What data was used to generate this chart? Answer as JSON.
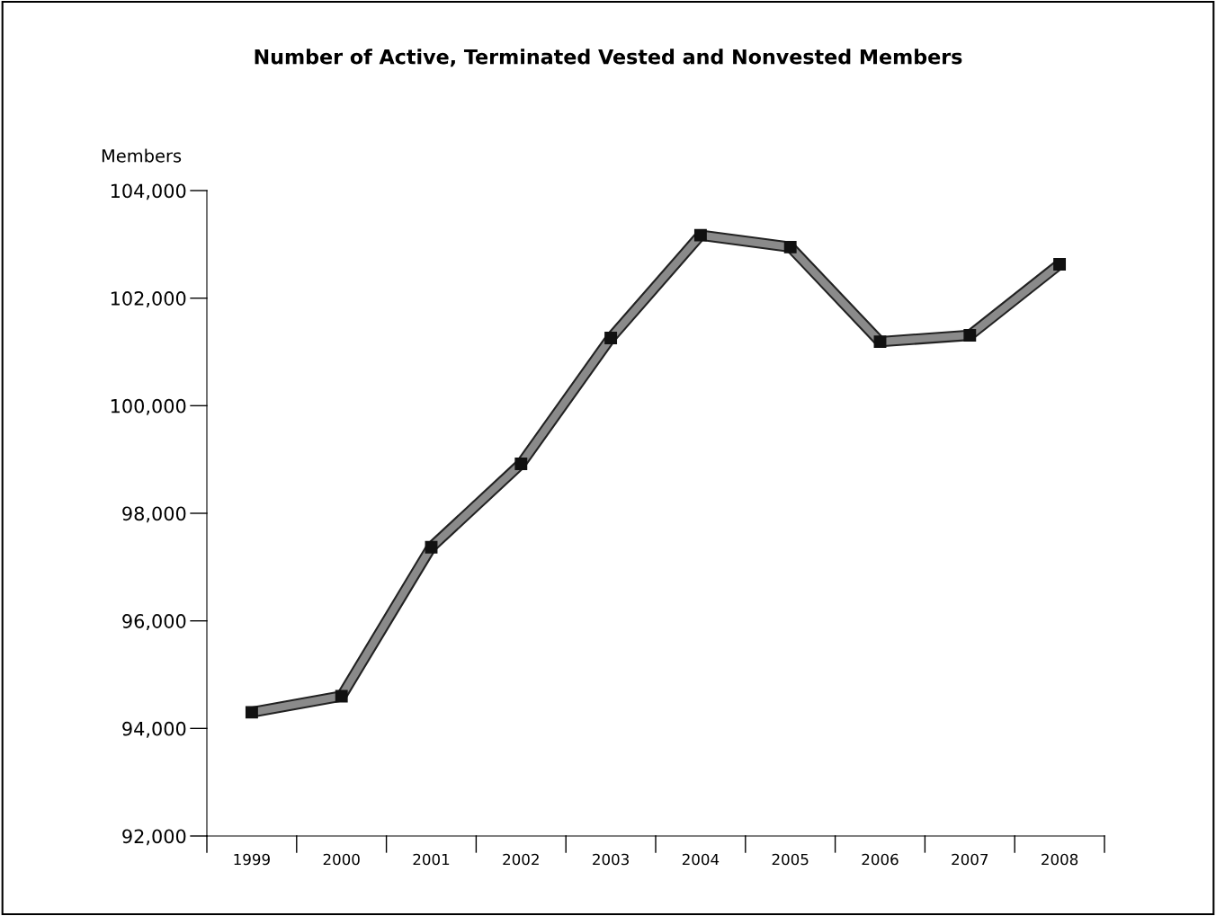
{
  "chart_data": {
    "type": "line",
    "title": "Number of Active, Terminated Vested and Nonvested Members",
    "ylabel": "Members",
    "categories": [
      "1999",
      "2000",
      "2001",
      "2002",
      "2003",
      "2004",
      "2005",
      "2006",
      "2007",
      "2008"
    ],
    "series": [
      {
        "color": "#8a8a8a",
        "values": [
          94300,
          94600,
          97370,
          98920,
          101260,
          103170,
          102950,
          101190,
          101310,
          102630
        ]
      }
    ],
    "ylim": [
      92000,
      104000
    ],
    "yticks": [
      {
        "value": 92000,
        "label": "92,000"
      },
      {
        "value": 94000,
        "label": "94,000"
      },
      {
        "value": 96000,
        "label": "96,000"
      },
      {
        "value": 98000,
        "label": "98,000"
      },
      {
        "value": 100000,
        "label": "100,000"
      },
      {
        "value": 102000,
        "label": "102,000"
      },
      {
        "value": 104000,
        "label": "104,000"
      }
    ],
    "marker": "square",
    "line_style": "solid",
    "grid": false,
    "legend": false
  }
}
